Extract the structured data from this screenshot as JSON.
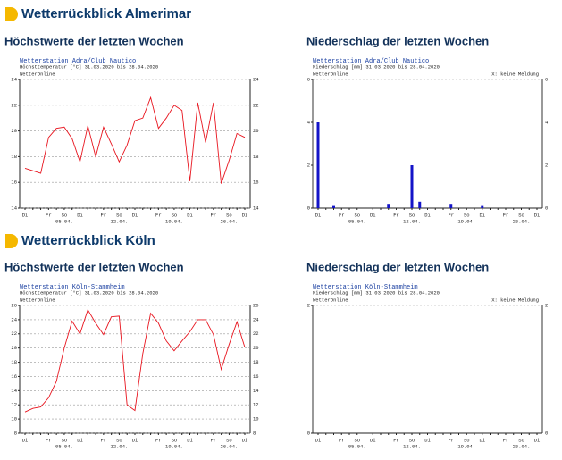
{
  "sections": [
    {
      "title": "Wetterrückblick Almerimar",
      "headings": [
        "Höchstwerte der letzten Wochen",
        "Niederschlag der letzten Wochen"
      ]
    },
    {
      "title": "Wetterrückblick Köln",
      "headings": [
        "Höchstwerte der letzten Wochen",
        "Niederschlag der letzten Wochen"
      ]
    }
  ],
  "chart_data": [
    {
      "type": "line",
      "title": "Wetterstation Adra/Club Nautico",
      "subtitle": "Höchsttemperatur [°C] 31.03.2020 bis 28.04.2020",
      "source": "WetterOnline",
      "categories": [
        "Di",
        null,
        null,
        "Fr",
        null,
        "So",
        null,
        "Di",
        null,
        null,
        "Fr",
        null,
        "So",
        null,
        "Di",
        null,
        null,
        "Fr",
        null,
        "So",
        null,
        "Di",
        null,
        null,
        "Fr",
        null,
        "So",
        null,
        "Di"
      ],
      "date_labels": [
        null,
        null,
        null,
        null,
        null,
        "05.04.",
        null,
        null,
        null,
        null,
        null,
        null,
        "12.04.",
        null,
        null,
        null,
        null,
        null,
        null,
        "19.04.",
        null,
        null,
        null,
        null,
        null,
        null,
        "26.04.",
        null,
        null
      ],
      "values": [
        17.1,
        16.9,
        16.7,
        19.5,
        20.2,
        20.3,
        19.4,
        17.6,
        20.4,
        18.0,
        20.3,
        19.0,
        17.6,
        18.9,
        20.8,
        21.0,
        22.6,
        20.2,
        21.0,
        22.0,
        21.6,
        16.1,
        22.2,
        19.1,
        22.2,
        15.9,
        17.7,
        19.8,
        19.5
      ],
      "color": "#e8141e",
      "ylim": [
        14,
        24
      ],
      "yticks": [
        14,
        16,
        18,
        20,
        22,
        24
      ],
      "grid": true
    },
    {
      "type": "bar",
      "title": "Wetterstation Adra/Club Nautico",
      "subtitle": "Niederschlag [mm] 31.03.2020 bis 28.04.2020",
      "source": "WetterOnline",
      "note": "X: keine Meldung",
      "categories": [
        "Di",
        null,
        null,
        "Fr",
        null,
        "So",
        null,
        "Di",
        null,
        null,
        "Fr",
        null,
        "So",
        null,
        "Di",
        null,
        null,
        "Fr",
        null,
        "So",
        null,
        "Di",
        null,
        null,
        "Fr",
        null,
        "So",
        null,
        "Di"
      ],
      "date_labels": [
        null,
        null,
        null,
        null,
        null,
        "05.04.",
        null,
        null,
        null,
        null,
        null,
        null,
        "12.04.",
        null,
        null,
        null,
        null,
        null,
        null,
        "19.04.",
        null,
        null,
        null,
        null,
        null,
        null,
        "26.04.",
        null,
        null
      ],
      "values": [
        4.0,
        0,
        0.1,
        0,
        0,
        0,
        0,
        0,
        0,
        0.2,
        0,
        0,
        2.0,
        0.3,
        0,
        0,
        0,
        0.2,
        0,
        0,
        0,
        0.1,
        0,
        0,
        0,
        0,
        0,
        0,
        0
      ],
      "color": "#1414c8",
      "ylim": [
        0,
        6
      ],
      "yticks": [
        0,
        2,
        4,
        6
      ],
      "grid": false
    },
    {
      "type": "line",
      "title": "Wetterstation Köln-Stammheim",
      "subtitle": "Höchsttemperatur [°C] 31.03.2020 bis 28.04.2020",
      "source": "WetterOnline",
      "categories": [
        "Di",
        null,
        null,
        "Fr",
        null,
        "So",
        null,
        "Di",
        null,
        null,
        "Fr",
        null,
        "So",
        null,
        "Di",
        null,
        null,
        "Fr",
        null,
        "So",
        null,
        "Di",
        null,
        null,
        "Fr",
        null,
        "So",
        null,
        "Di"
      ],
      "date_labels": [
        null,
        null,
        null,
        null,
        null,
        "05.04.",
        null,
        null,
        null,
        null,
        null,
        null,
        "12.04.",
        null,
        null,
        null,
        null,
        null,
        null,
        "19.04.",
        null,
        null,
        null,
        null,
        null,
        null,
        "26.04.",
        null,
        null
      ],
      "values": [
        11.0,
        11.5,
        11.7,
        13.0,
        15.3,
        20.0,
        23.8,
        22.0,
        25.4,
        23.5,
        21.9,
        24.4,
        24.5,
        12.0,
        11.2,
        19.2,
        24.9,
        23.5,
        21.0,
        19.6,
        21.0,
        22.3,
        24.0,
        24.0,
        21.9,
        17.0,
        20.5,
        23.7,
        20.1
      ],
      "color": "#e8141e",
      "ylim": [
        8,
        26
      ],
      "yticks": [
        8,
        10,
        12,
        14,
        16,
        18,
        20,
        22,
        24,
        26
      ],
      "grid": true
    },
    {
      "type": "bar",
      "title": "Wetterstation Köln-Stammheim",
      "subtitle": "Niederschlag [mm] 31.03.2020 bis 28.04.2020",
      "source": "WetterOnline",
      "note": "X: keine Meldung",
      "categories": [
        "Di",
        null,
        null,
        "Fr",
        null,
        "So",
        null,
        "Di",
        null,
        null,
        "Fr",
        null,
        "So",
        null,
        "Di",
        null,
        null,
        "Fr",
        null,
        "So",
        null,
        "Di",
        null,
        null,
        "Fr",
        null,
        "So",
        null,
        "Di"
      ],
      "date_labels": [
        null,
        null,
        null,
        null,
        null,
        "05.04.",
        null,
        null,
        null,
        null,
        null,
        null,
        "12.04.",
        null,
        null,
        null,
        null,
        null,
        null,
        "19.04.",
        null,
        null,
        null,
        null,
        null,
        null,
        "26.04.",
        null,
        null
      ],
      "values": [
        0,
        0,
        0,
        0,
        0,
        0,
        0,
        0,
        0,
        0,
        0,
        0,
        0,
        0,
        0,
        0,
        0,
        0,
        0,
        0,
        0,
        0,
        0,
        0,
        0,
        0,
        0,
        0,
        0
      ],
      "color": "#1414c8",
      "ylim": [
        0,
        2
      ],
      "yticks": [
        0,
        2
      ],
      "grid": false
    }
  ]
}
